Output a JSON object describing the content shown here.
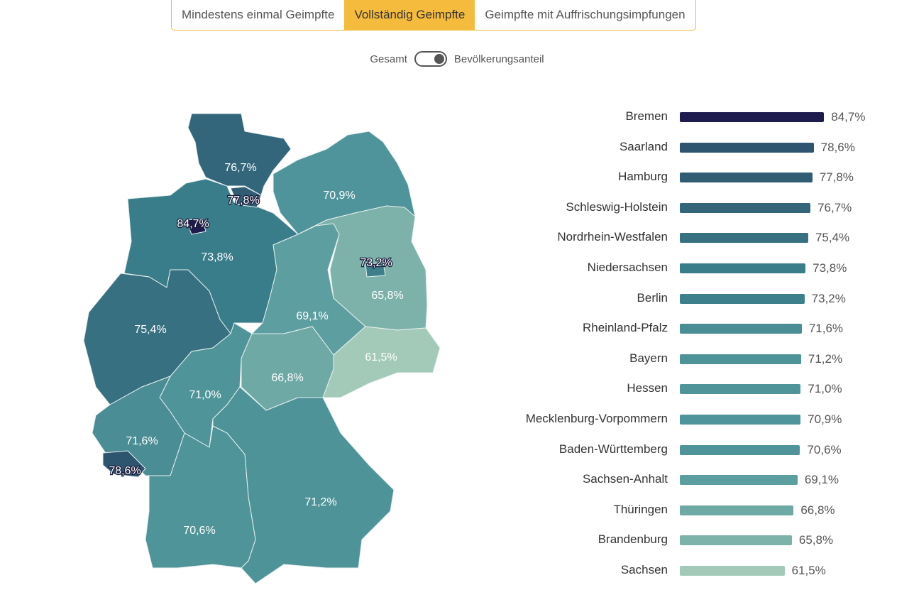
{
  "tabs": [
    {
      "label": "Mindestens einmal Geimpfte",
      "active": false
    },
    {
      "label": "Vollständig Geimpfte",
      "active": true
    },
    {
      "label": "Geimpfte mit Auffrischungsimpfungen",
      "active": false
    }
  ],
  "toggle": {
    "left_label": "Gesamt",
    "right_label": "Bevölkerungsanteil",
    "state": "Bevölkerungsanteil"
  },
  "accent_color": "#f5bb3c",
  "chart_data": {
    "type": "bar",
    "orientation": "horizontal",
    "xlim": [
      0,
      100
    ],
    "unit": "%",
    "categories": [
      "Bremen",
      "Saarland",
      "Hamburg",
      "Schleswig-Holstein",
      "Nordrhein-Westfalen",
      "Niedersachsen",
      "Berlin",
      "Rheinland-Pfalz",
      "Bayern",
      "Hessen",
      "Mecklenburg-Vorpommern",
      "Baden-Württemberg",
      "Sachsen-Anhalt",
      "Thüringen",
      "Brandenburg",
      "Sachsen"
    ],
    "values": [
      84.7,
      78.6,
      77.8,
      76.7,
      75.4,
      73.8,
      73.2,
      71.6,
      71.2,
      71.0,
      70.9,
      70.6,
      69.1,
      66.8,
      65.8,
      61.5
    ],
    "value_labels": [
      "84,7%",
      "78,6%",
      "77,8%",
      "76,7%",
      "75,4%",
      "73,8%",
      "73,2%",
      "71,6%",
      "71,2%",
      "71,0%",
      "70,9%",
      "70,6%",
      "69,1%",
      "66,8%",
      "65,8%",
      "61,5%"
    ],
    "colors": [
      "#1e1c4e",
      "#2e5570",
      "#305d74",
      "#33667a",
      "#377080",
      "#3a7d8a",
      "#3d808c",
      "#4a8d95",
      "#4e9398",
      "#4f9499",
      "#4f949a",
      "#4f9499",
      "#5d9ea0",
      "#6ea9a5",
      "#7db2aa",
      "#a3cab9"
    ]
  }
}
